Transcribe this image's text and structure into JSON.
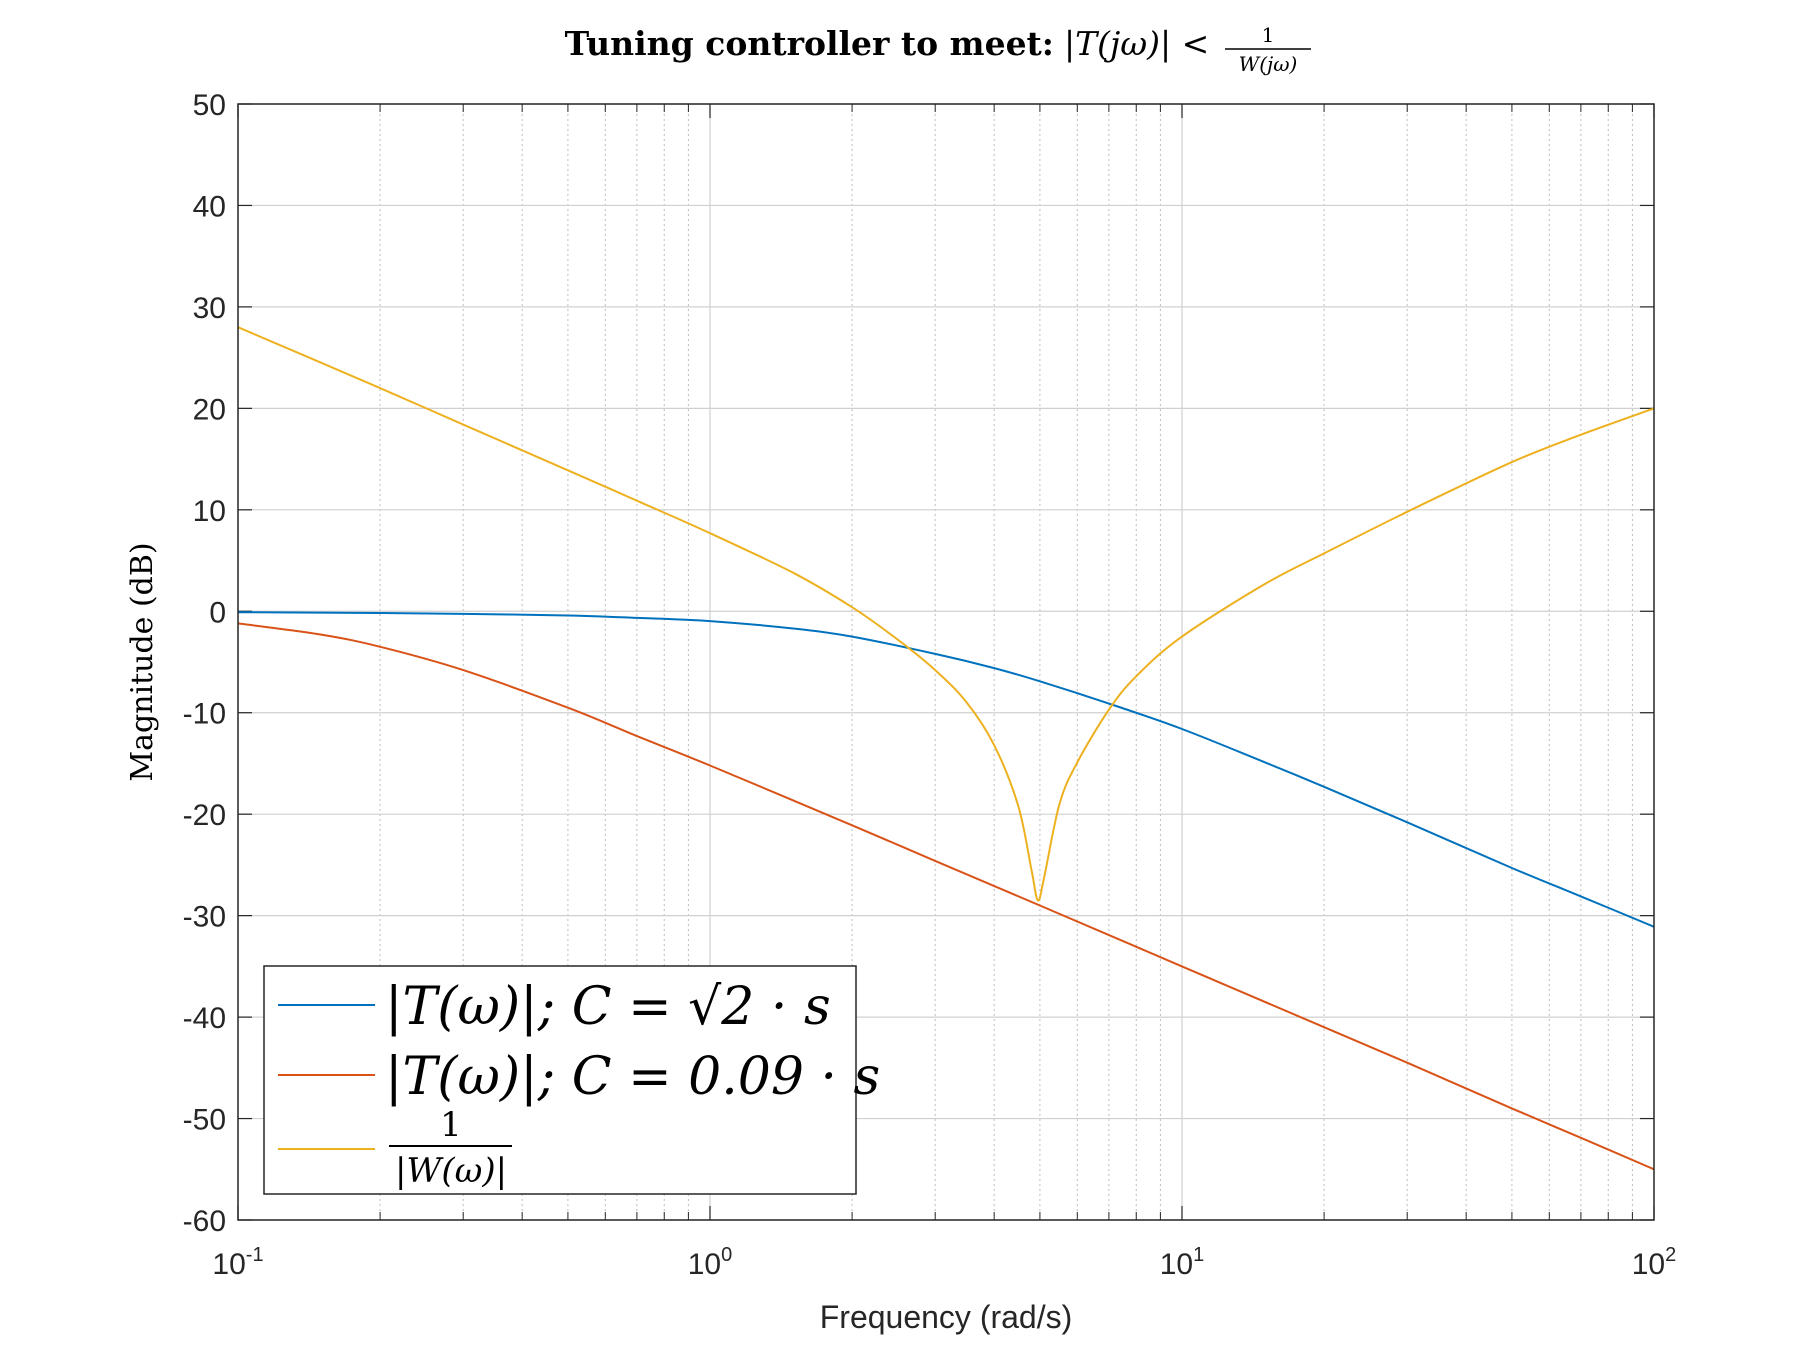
{
  "chart_data": {
    "type": "line",
    "title_text": "Tuning controller to meet:",
    "title_math": "|T(jω)| <",
    "title_frac_num": "1",
    "title_frac_den": "W(jω)",
    "xlabel": "Frequency (rad/s)",
    "ylabel": "Magnitude (dB)",
    "x_scale": "log",
    "xlim": [
      0.1,
      100
    ],
    "ylim": [
      -60,
      50
    ],
    "x_tick_labels": [
      {
        "base": "10",
        "exp": "-1"
      },
      {
        "base": "10",
        "exp": "0"
      },
      {
        "base": "10",
        "exp": "1"
      },
      {
        "base": "10",
        "exp": "2"
      }
    ],
    "y_ticks": [
      "50",
      "40",
      "30",
      "20",
      "10",
      "0",
      "-10",
      "-20",
      "-30",
      "-40",
      "-50",
      "-60"
    ],
    "grid": true,
    "legend_placement": "bottom-left",
    "series": [
      {
        "name": "|T(ω)|; C = √2 · s",
        "legend_label": "|T(ω)|; C = √2 · s",
        "color": "#0072BD",
        "points": [
          [
            0.1,
            -0.09
          ],
          [
            0.2,
            -0.17
          ],
          [
            0.3,
            -0.26
          ],
          [
            0.5,
            -0.42
          ],
          [
            0.7,
            -0.65
          ],
          [
            1,
            -0.97
          ],
          [
            1.5,
            -1.7
          ],
          [
            2,
            -2.5
          ],
          [
            3,
            -4.2
          ],
          [
            4,
            -5.6
          ],
          [
            5,
            -6.9
          ],
          [
            7,
            -9.1
          ],
          [
            10,
            -11.6
          ],
          [
            15,
            -14.9
          ],
          [
            20,
            -17.3
          ],
          [
            30,
            -20.8
          ],
          [
            50,
            -25.3
          ],
          [
            70,
            -28.1
          ],
          [
            100,
            -31.1
          ]
        ]
      },
      {
        "name": "|T(ω)|; C = 0.09 · s",
        "legend_label": "|T(ω)|; C = 0.09 · s",
        "color": "#D95319",
        "points": [
          [
            0.1,
            -1.2
          ],
          [
            0.15,
            -2.3
          ],
          [
            0.2,
            -3.5
          ],
          [
            0.3,
            -5.8
          ],
          [
            0.5,
            -9.5
          ],
          [
            0.7,
            -12.3
          ],
          [
            1,
            -15.2
          ],
          [
            2,
            -21.1
          ],
          [
            3,
            -24.6
          ],
          [
            5,
            -29
          ],
          [
            10,
            -35
          ],
          [
            20,
            -41
          ],
          [
            30,
            -44.5
          ],
          [
            50,
            -49
          ],
          [
            70,
            -51.9
          ],
          [
            100,
            -55
          ]
        ]
      },
      {
        "name": "1/|W(ω)|",
        "legend_label_num": "1",
        "legend_label_den": "|W(ω)|",
        "color": "#EDB120",
        "points": [
          [
            0.1,
            28
          ],
          [
            0.2,
            22
          ],
          [
            0.3,
            18.4
          ],
          [
            0.5,
            13.9
          ],
          [
            0.7,
            10.9
          ],
          [
            1,
            7.7
          ],
          [
            1.5,
            3.8
          ],
          [
            2,
            0.4
          ],
          [
            2.5,
            -2.8
          ],
          [
            3,
            -5.8
          ],
          [
            3.5,
            -9
          ],
          [
            4,
            -13.2
          ],
          [
            4.5,
            -19.2
          ],
          [
            4.8,
            -25.5
          ],
          [
            4.95,
            -28.5
          ],
          [
            5.1,
            -26.3
          ],
          [
            5.5,
            -19
          ],
          [
            6,
            -14.9
          ],
          [
            7,
            -9.7
          ],
          [
            8,
            -6.4
          ],
          [
            10,
            -2.5
          ],
          [
            15,
            2.7
          ],
          [
            20,
            5.7
          ],
          [
            30,
            9.8
          ],
          [
            50,
            14.7
          ],
          [
            70,
            17.4
          ],
          [
            100,
            20
          ]
        ]
      }
    ]
  }
}
